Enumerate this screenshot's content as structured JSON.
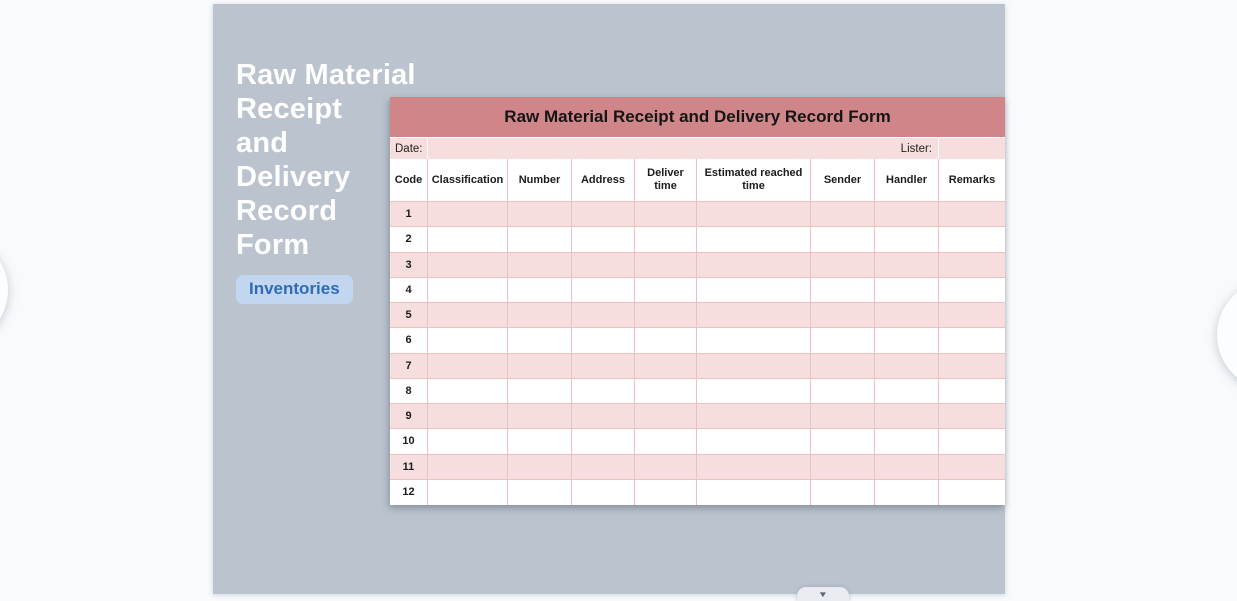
{
  "page": {
    "background": "#f8fafc"
  },
  "card": {
    "background": "#bac3ce"
  },
  "panel": {
    "title_lines": [
      "Raw Material",
      "Receipt",
      "and",
      "Delivery",
      "Record",
      "Form"
    ],
    "tag_label": "Inventories",
    "tag_bg": "#c3d6ef",
    "tag_color": "#2e6cb5"
  },
  "form": {
    "title": "Raw Material Receipt and Delivery Record Form",
    "date_label": "Date:",
    "lister_label": "Lister:",
    "columns": [
      "Code",
      "Classification",
      "Number",
      "Address",
      "Deliver time",
      "Estimated reached time",
      "Sender",
      "Handler",
      "Remarks"
    ],
    "row_numbers": [
      "1",
      "2",
      "3",
      "4",
      "5",
      "6",
      "7",
      "8",
      "9",
      "10",
      "11",
      "12"
    ],
    "colors": {
      "title_bar": "#d08689",
      "stripe": "#f7dede",
      "border": "#eec1c1"
    }
  },
  "nav": {
    "collapse_icon": "▼"
  }
}
